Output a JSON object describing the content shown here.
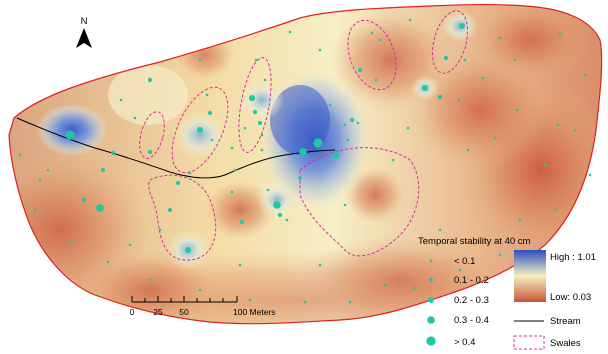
{
  "map": {
    "north_label": "N",
    "legend": {
      "title": "Temporal stability at 40 cm",
      "point_classes": [
        "< 0.1",
        "0.1 - 0.2",
        "0.2 - 0.3",
        "0.3 - 0.4",
        "> 0.4"
      ],
      "raster_high": "High : 1.01",
      "raster_low": "Low: 0.03",
      "stream_label": "Stream",
      "swales_label": "Swales"
    },
    "scale_bar": {
      "labels": [
        "0",
        "25",
        "50",
        "100 Meters"
      ]
    },
    "colors": {
      "high": "#3c5fc8",
      "mid": "#f6f0c0",
      "low": "#c8553a",
      "boundary": "#e02020",
      "swale": "#d62f9a",
      "point": "#1fc8a3",
      "stream": "#000000"
    }
  }
}
